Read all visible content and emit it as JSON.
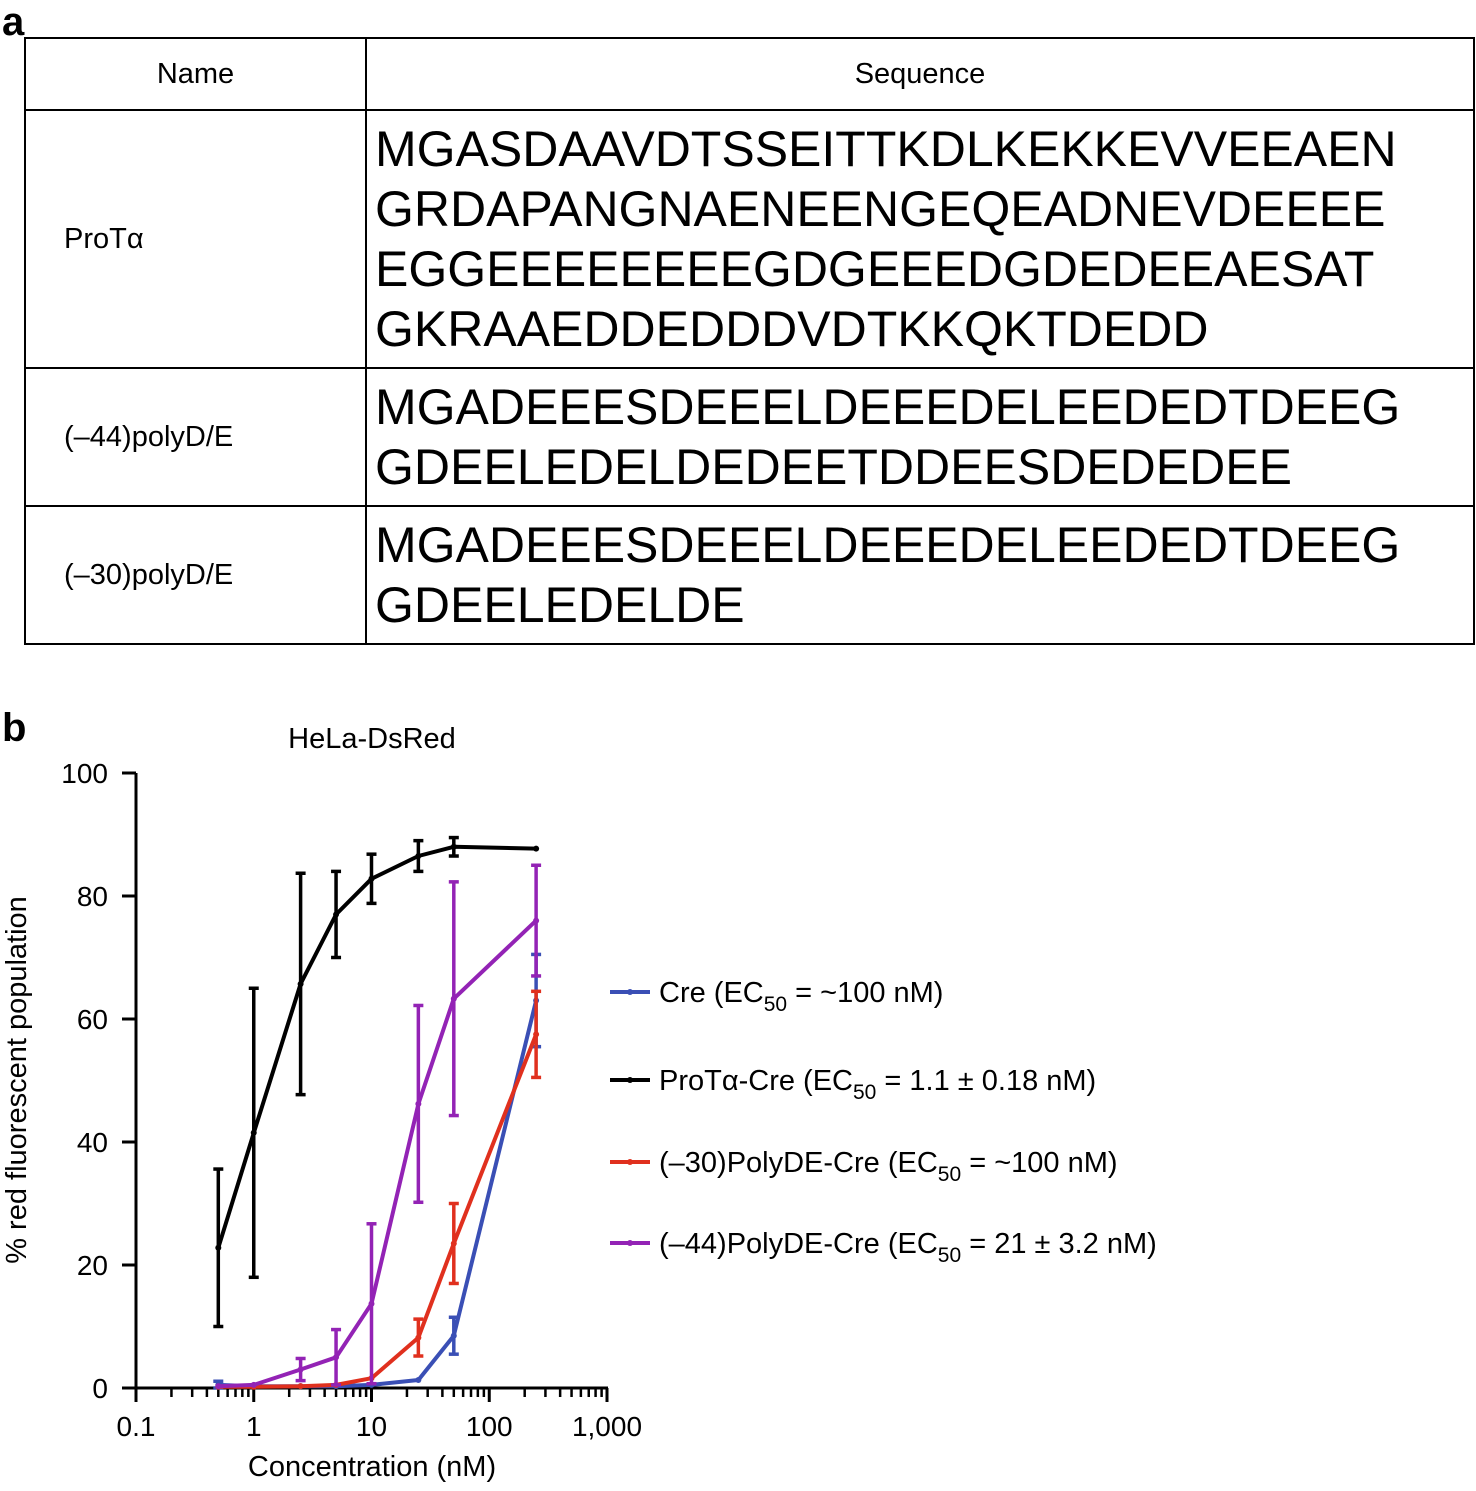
{
  "panel_a": {
    "label": "a",
    "table": {
      "headers": [
        "Name",
        "Sequence"
      ],
      "rows": [
        {
          "name": "ProTα",
          "sequence_lines": [
            "MGASDAAVDTSSEITTKDLKEKKEVVEEAEN",
            "GRDAPANGNAENEENGEQEADNEVDEEEE",
            "EGGEEEEEEEEGDGEEEDGDEDEEAESAT",
            "GKRAAEDDEDDDVDTKKQKTDEDD"
          ]
        },
        {
          "name": "(–44)polyD/E",
          "sequence_lines": [
            "MGADEEESDEEELDEEEDELEEDEDTDEEG",
            "GDEELEDELDEDEETDDEESDEDEDEE"
          ]
        },
        {
          "name": "(–30)polyD/E",
          "sequence_lines": [
            "MGADEEESDEEELDEEEDELEEDEDTDEEG",
            "GDEELEDELDE"
          ]
        }
      ]
    }
  },
  "panel_b": {
    "label": "b"
  },
  "chart_data": {
    "type": "line",
    "title": "HeLa-DsRed",
    "xlabel": "Concentration (nM)",
    "ylabel": "% red fluorescent population",
    "x_scale": "log",
    "xlim": [
      0.1,
      1000
    ],
    "ylim": [
      0,
      100
    ],
    "x_ticks": [
      0.1,
      1,
      10,
      100,
      1000
    ],
    "x_tick_labels": [
      "0.1",
      "1",
      "10",
      "100",
      "1,000"
    ],
    "y_ticks": [
      0,
      20,
      40,
      60,
      80,
      100
    ],
    "y_tick_labels": [
      "0",
      "20",
      "40",
      "60",
      "80",
      "100"
    ],
    "grid": false,
    "legend_position": "right",
    "series": [
      {
        "name": "Cre",
        "ec50": "~100 nM",
        "color": "#3a4fb5",
        "x": [
          0.5,
          1,
          2.5,
          5,
          10,
          25,
          50,
          250
        ],
        "y": [
          0.5,
          0.3,
          0.3,
          0.3,
          0.5,
          1.3,
          8.5,
          63
        ],
        "err": [
          0.6,
          0,
          0,
          0,
          0,
          0,
          3,
          7.5
        ]
      },
      {
        "name": "ProTα-Cre",
        "ec50": "1.1 ± 0.18 nM",
        "color": "#000000",
        "x": [
          0.5,
          1,
          2.5,
          5,
          10,
          25,
          50,
          250
        ],
        "y": [
          22.8,
          41.5,
          65.7,
          77,
          82.8,
          86.5,
          88,
          87.7
        ],
        "err": [
          12.8,
          23.5,
          18,
          7,
          4,
          2.5,
          1.5,
          0
        ]
      },
      {
        "name": "(–30)PolyDE-Cre",
        "ec50": "~100 nM",
        "color": "#e0301e",
        "x": [
          0.5,
          1,
          2.5,
          5,
          10,
          25,
          50,
          250
        ],
        "y": [
          0.2,
          0.2,
          0.3,
          0.5,
          1.6,
          8.2,
          23.5,
          57.5
        ],
        "err": [
          0,
          0,
          0,
          0,
          0,
          3,
          6.5,
          7
        ]
      },
      {
        "name": "(–44)PolyDE-Cre",
        "ec50": "21 ± 3.2 nM",
        "color": "#9323b5",
        "x": [
          0.5,
          1,
          2.5,
          5,
          10,
          25,
          50,
          250
        ],
        "y": [
          0.3,
          0.5,
          3,
          5,
          13.7,
          46.2,
          63.3,
          76
        ],
        "err": [
          0,
          0,
          1.8,
          4.5,
          13,
          16,
          19,
          9
        ]
      }
    ]
  }
}
